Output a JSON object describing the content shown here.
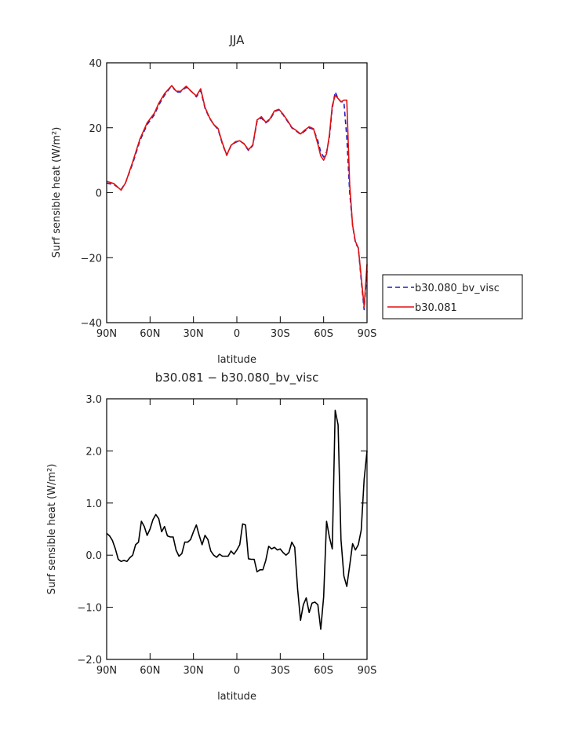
{
  "chart_data": [
    {
      "type": "line",
      "title": "JJA",
      "xlabel": "latitude",
      "ylabel": "Surf sensible heat (W/m²)",
      "ylim": [
        -40,
        40
      ],
      "xlim": [
        90,
        -90
      ],
      "x_ticks": [
        90,
        60,
        30,
        0,
        -30,
        -60,
        -90
      ],
      "x_tick_labels": [
        "90N",
        "60N",
        "30N",
        "0",
        "30S",
        "60S",
        "90S"
      ],
      "y_ticks": [
        -40,
        -20,
        0,
        20,
        40
      ],
      "y_tick_labels": [
        "−40",
        "−20",
        "0",
        "20",
        "40"
      ],
      "legend": "right",
      "series": [
        {
          "name": "b30.080_bv_visc",
          "color": "#1f1fbf",
          "dash": "dashed",
          "x": [
            90,
            85,
            80,
            77,
            72,
            67,
            62,
            57,
            54,
            50,
            45,
            42,
            39,
            35,
            31,
            28,
            25,
            22,
            19,
            16,
            13,
            10,
            7,
            4,
            1,
            -2,
            -5,
            -8,
            -11,
            -14,
            -17,
            -20,
            -23,
            -26,
            -29,
            -32,
            -35,
            -38,
            -41,
            -44,
            -47,
            -50,
            -53,
            -56,
            -58,
            -60,
            -62,
            -64,
            -66,
            -68,
            -70,
            -72,
            -74,
            -76,
            -78,
            -80,
            -82,
            -84,
            -86,
            -88,
            -90
          ],
          "values": [
            3,
            2.5,
            1,
            3,
            9,
            16,
            21,
            24,
            27,
            30,
            33,
            31,
            31,
            32.5,
            31,
            29.5,
            31.5,
            26,
            23,
            21,
            19.5,
            15,
            11.5,
            14.5,
            15.5,
            16,
            15,
            13,
            14.5,
            22,
            23,
            21.5,
            22.5,
            25,
            25.5,
            24,
            22,
            20,
            19,
            18,
            19,
            20,
            19.5,
            16,
            12.5,
            11,
            12.5,
            17,
            26,
            31,
            29,
            28,
            28,
            17,
            0,
            -10,
            -15.5,
            -17,
            -27,
            -36,
            -24
          ]
        },
        {
          "name": "b30.081",
          "color": "#e01010",
          "dash": "solid",
          "x": [
            90,
            85,
            80,
            77,
            72,
            67,
            62,
            57,
            54,
            50,
            45,
            42,
            39,
            35,
            31,
            28,
            25,
            22,
            19,
            16,
            13,
            10,
            7,
            4,
            1,
            -2,
            -5,
            -8,
            -11,
            -14,
            -17,
            -20,
            -23,
            -26,
            -29,
            -32,
            -35,
            -38,
            -41,
            -44,
            -47,
            -50,
            -53,
            -56,
            -58,
            -60,
            -62,
            -64,
            -66,
            -68,
            -70,
            -72,
            -74,
            -76,
            -78,
            -80,
            -82,
            -84,
            -86,
            -88,
            -90
          ],
          "values": [
            3.5,
            2.8,
            0.8,
            3,
            9.5,
            16.5,
            21.5,
            24.5,
            27.5,
            30.5,
            33,
            31.3,
            31.2,
            32.8,
            31,
            29.8,
            32,
            26.3,
            23.2,
            21,
            19.8,
            15.3,
            11.6,
            14.6,
            15.7,
            16,
            15.1,
            13.2,
            14.7,
            22.4,
            23.4,
            21.7,
            22.8,
            25.2,
            25.7,
            24.2,
            22.2,
            20.1,
            19.2,
            18.1,
            19.3,
            20.3,
            19.7,
            15,
            11.3,
            10,
            12,
            17.7,
            26.8,
            30,
            29,
            28,
            28.5,
            28.5,
            2.5,
            -10,
            -15,
            -17,
            -26,
            -35,
            -22
          ]
        }
      ]
    },
    {
      "type": "line",
      "title": "b30.081 − b30.080_bv_visc",
      "xlabel": "latitude",
      "ylabel": "Surf sensible heat (W/m²)",
      "ylim": [
        -2.0,
        3.0
      ],
      "xlim": [
        90,
        -90
      ],
      "x_ticks": [
        90,
        60,
        30,
        0,
        -30,
        -60,
        -90
      ],
      "x_tick_labels": [
        "90N",
        "60N",
        "30N",
        "0",
        "30S",
        "60S",
        "90S"
      ],
      "y_ticks": [
        -2.0,
        -1.0,
        0.0,
        1.0,
        2.0,
        3.0
      ],
      "y_tick_labels": [
        "−2.0",
        "−1.0",
        "0.0",
        "1.0",
        "2.0",
        "3.0"
      ],
      "series": [
        {
          "color": "#000000",
          "x": [
            90,
            88,
            86,
            84,
            82,
            80,
            78,
            76,
            74,
            72,
            70,
            68,
            66,
            64,
            62,
            60,
            58,
            56,
            54,
            52,
            50,
            48,
            46,
            44,
            42,
            40,
            38,
            36,
            34,
            32,
            30,
            28,
            26,
            24,
            22,
            20,
            18,
            16,
            14,
            12,
            10,
            8,
            6,
            4,
            2,
            0,
            -2,
            -4,
            -6,
            -8,
            -10,
            -12,
            -14,
            -16,
            -18,
            -20,
            -22,
            -24,
            -26,
            -28,
            -30,
            -32,
            -34,
            -36,
            -38,
            -40,
            -42,
            -44,
            -46,
            -48,
            -50,
            -52,
            -54,
            -56,
            -58,
            -60,
            -62,
            -64,
            -66,
            -68,
            -70,
            -72,
            -74,
            -76,
            -78,
            -80,
            -82,
            -84,
            -86,
            -88,
            -90
          ],
          "values": [
            0.42,
            0.37,
            0.28,
            0.12,
            -0.08,
            -0.12,
            -0.1,
            -0.12,
            -0.05,
            0.0,
            0.2,
            0.25,
            0.65,
            0.55,
            0.38,
            0.5,
            0.68,
            0.78,
            0.7,
            0.45,
            0.55,
            0.37,
            0.35,
            0.35,
            0.1,
            -0.02,
            0.03,
            0.25,
            0.25,
            0.3,
            0.45,
            0.58,
            0.38,
            0.2,
            0.38,
            0.3,
            0.08,
            0.0,
            -0.04,
            0.02,
            -0.02,
            -0.02,
            -0.02,
            0.08,
            0.02,
            0.1,
            0.2,
            0.6,
            0.58,
            -0.07,
            -0.08,
            -0.08,
            -0.32,
            -0.28,
            -0.28,
            -0.1,
            0.17,
            0.12,
            0.15,
            0.1,
            0.12,
            0.05,
            0.0,
            0.05,
            0.25,
            0.15,
            -0.65,
            -1.25,
            -0.95,
            -0.82,
            -1.1,
            -0.92,
            -0.9,
            -0.95,
            -1.42,
            -0.8,
            0.65,
            0.35,
            0.12,
            2.78,
            2.5,
            0.3,
            -0.4,
            -0.6,
            -0.2,
            0.22,
            0.1,
            0.2,
            0.48,
            1.45,
            2.0
          ]
        }
      ]
    }
  ]
}
